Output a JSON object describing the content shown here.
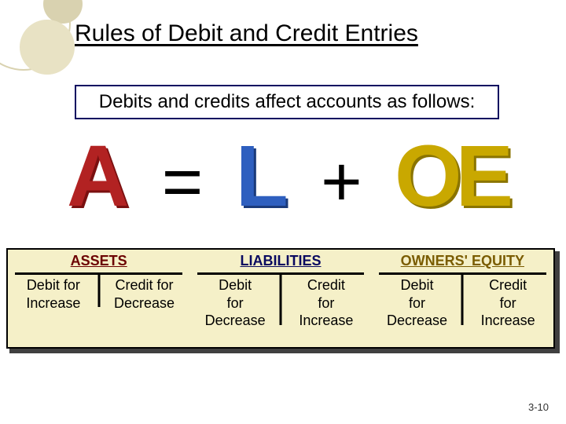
{
  "title": "Rules of Debit and Credit Entries",
  "subtitle": "Debits and credits affect accounts as follows:",
  "equation": {
    "a": "A",
    "eq": "=",
    "l": "L",
    "plus": "+",
    "oe": "OE",
    "colors": {
      "a": "#b22222",
      "l": "#2e5fbf",
      "oe": "#c9a800",
      "op": "#000000"
    },
    "fontsize_letter": 110,
    "fontsize_op": 90
  },
  "taccounts": {
    "background": "#f5f0c8",
    "shadow": "#404040",
    "border": "#000000",
    "columns": [
      {
        "key": "assets",
        "header": "ASSETS",
        "header_color": "#6b0000",
        "left_line1": "Debit for",
        "left_line2": "Increase",
        "right_line1": "Credit for",
        "right_line2": "Decrease"
      },
      {
        "key": "liab",
        "header": "LIABILITIES",
        "header_color": "#0a0a60",
        "left_line1": "Debit",
        "left_line2": "for",
        "left_line3": "Decrease",
        "right_line1": "Credit",
        "right_line2": "for",
        "right_line3": "Increase"
      },
      {
        "key": "oe",
        "header": "OWNERS' EQUITY",
        "header_color": "#7a5c00",
        "left_line1": "Debit",
        "left_line2": "for",
        "left_line3": "Decrease",
        "right_line1": "Credit",
        "right_line2": "for",
        "right_line3": "Increase"
      }
    ]
  },
  "footer": "3-10",
  "decoration": {
    "ring_color": "#d9d2b0",
    "fill1": "#e8e2c4",
    "fill2": "#d9d2b0"
  }
}
